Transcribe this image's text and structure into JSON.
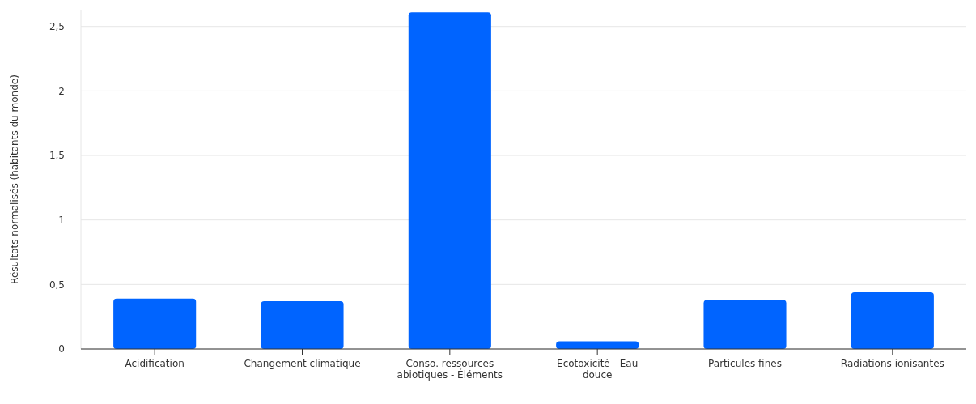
{
  "chart_data": {
    "type": "bar",
    "ylabel": "Résultats  normalisés (habitants du monde)",
    "categories": [
      "Acidification",
      "Changement climatique",
      "Conso. ressources abiotiques - Éléments",
      "Ecotoxicité - Eau douce",
      "Particules fines",
      "Radiations ionisantes"
    ],
    "values": [
      0.39,
      0.37,
      2.61,
      0.06,
      0.38,
      0.44
    ],
    "color": "#0064ff",
    "ylim": [
      0,
      2.63
    ],
    "yticks": [
      {
        "value": 0,
        "label": "0"
      },
      {
        "value": 0.5,
        "label": "0,5"
      },
      {
        "value": 1,
        "label": "1"
      },
      {
        "value": 1.5,
        "label": "1,5"
      },
      {
        "value": 2,
        "label": "2"
      },
      {
        "value": 2.5,
        "label": "2,5"
      }
    ],
    "grid": "y"
  }
}
